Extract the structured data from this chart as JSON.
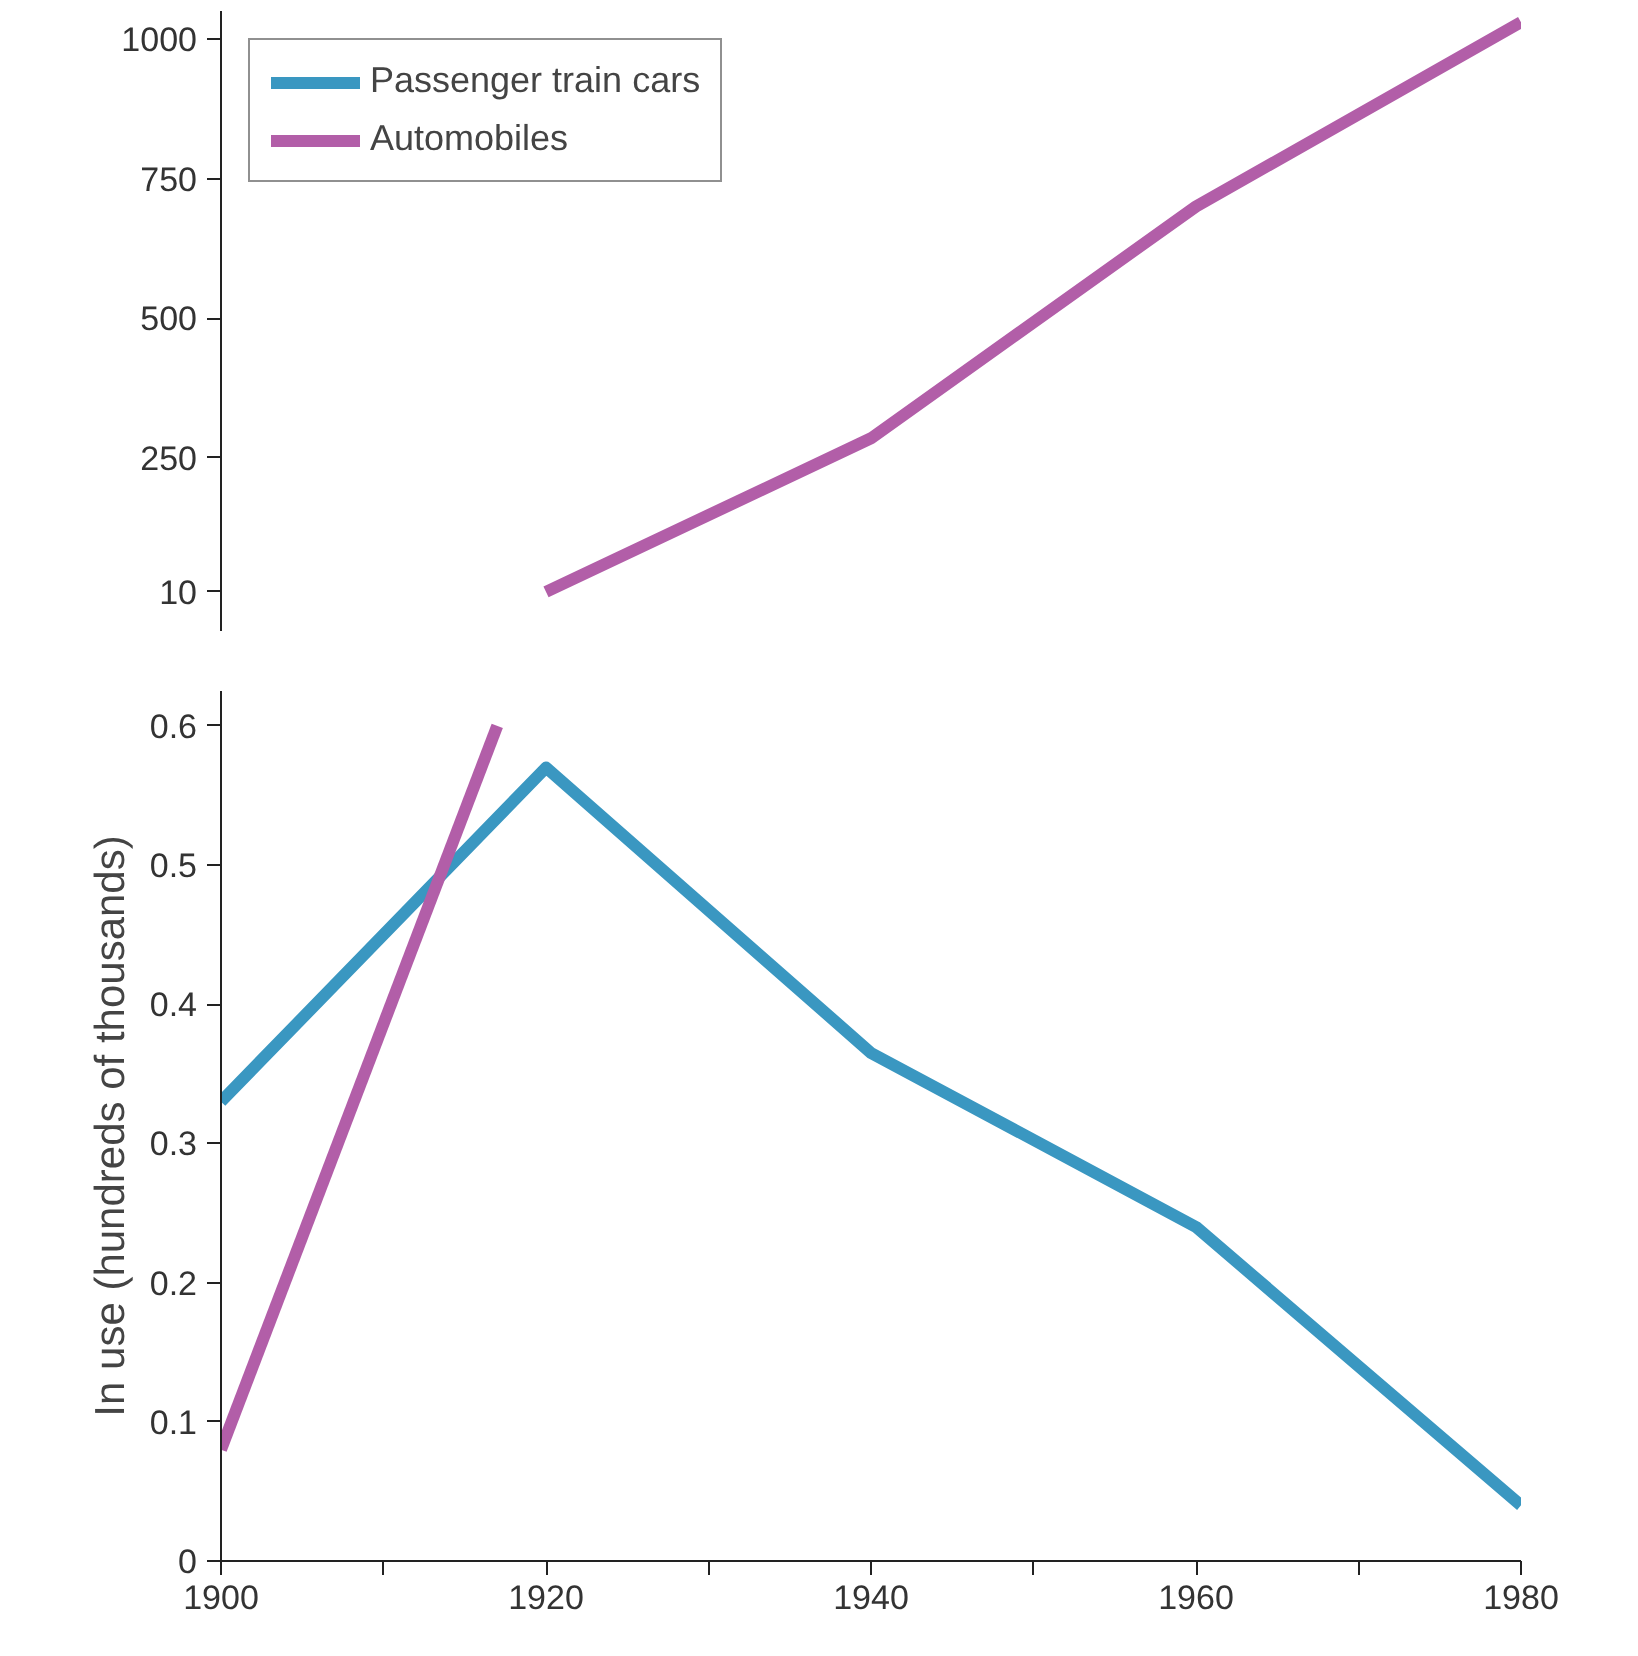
{
  "chart_data": [
    {
      "type": "line",
      "x": [
        1920,
        1940,
        1960,
        1980
      ],
      "xlim": [
        1900,
        1980
      ],
      "ylim": [
        -60,
        1050
      ],
      "yticks": [
        10,
        250,
        500,
        750,
        1000
      ],
      "tick_labels": "y",
      "legend": "top left",
      "grid": false,
      "series": [
        {
          "name": "Passenger train cars",
          "color": "#3a97c1",
          "values": [
            null,
            null,
            null,
            null
          ]
        },
        {
          "name": "Automobiles",
          "color": "#b25ea8",
          "values": [
            10,
            285,
            700,
            1030
          ]
        }
      ]
    },
    {
      "type": "line",
      "x": [
        1900,
        1920,
        1940,
        1960,
        1980
      ],
      "xlim": [
        1900,
        1980
      ],
      "ylim": [
        0,
        0.625
      ],
      "yticks": [
        0,
        0.1,
        0.2,
        0.3,
        0.4,
        0.5,
        0.6
      ],
      "xticks": [
        1900,
        {
          "value": 1910,
          "label": null
        },
        1920,
        {
          "value": 1930,
          "label": null
        },
        1940,
        {
          "value": 1950,
          "label": null
        },
        1960,
        {
          "value": 1970,
          "label": null
        },
        1980
      ],
      "ylabel": "In use (hundreds of thousands)",
      "grid": false,
      "series": [
        {
          "color": "#3a97c1",
          "values": [
            0.33,
            0.57,
            0.365,
            0.24,
            0.04
          ]
        },
        {
          "color": "#b25ea8",
          "x": [
            1900,
            1917
          ],
          "values": [
            0.08,
            0.6
          ]
        }
      ]
    }
  ]
}
